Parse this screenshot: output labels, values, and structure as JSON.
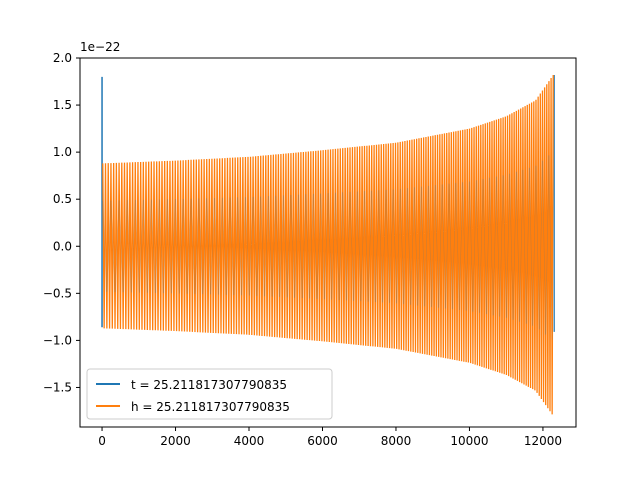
{
  "chart_data": {
    "type": "line",
    "title": "",
    "xlabel": "",
    "ylabel": "",
    "y_offset_label": "1e−22",
    "xlim": [
      -600,
      12900
    ],
    "ylim": [
      -1.92,
      2.0
    ],
    "x_ticks": [
      0,
      2000,
      4000,
      6000,
      8000,
      10000,
      12000
    ],
    "x_tick_labels": [
      "0",
      "2000",
      "4000",
      "6000",
      "8000",
      "10000",
      "12000"
    ],
    "y_ticks": [
      -1.5,
      -1.0,
      -0.5,
      0.0,
      0.5,
      1.0,
      1.5,
      2.0
    ],
    "y_tick_labels": [
      "−1.5",
      "−1.0",
      "−0.5",
      "0.0",
      "0.5",
      "1.0",
      "1.5",
      "2.0"
    ],
    "grid": false,
    "legend_position": "lower-left",
    "series": [
      {
        "name": "t = 25.211817307790835",
        "color": "#1f77b4",
        "start_spike": {
          "x": [
            0,
            0
          ],
          "y": [
            1.8,
            -0.86
          ]
        },
        "x_end": 12280,
        "envelope": {
          "x": [
            0,
            2000,
            4000,
            6000,
            8000,
            10000,
            11000,
            11800,
            12280
          ],
          "y": [
            0.88,
            0.91,
            0.95,
            1.02,
            1.1,
            1.25,
            1.38,
            1.55,
            1.82
          ]
        }
      },
      {
        "name": "h = 25.211817307790835",
        "color": "#ff7f0e",
        "x_start": 20,
        "x_end": 12280,
        "envelope": {
          "x": [
            0,
            2000,
            4000,
            6000,
            8000,
            10000,
            11000,
            11800,
            12280
          ],
          "y": [
            0.88,
            0.91,
            0.95,
            1.02,
            1.1,
            1.25,
            1.38,
            1.55,
            1.82
          ]
        },
        "cycles": 185
      }
    ]
  }
}
